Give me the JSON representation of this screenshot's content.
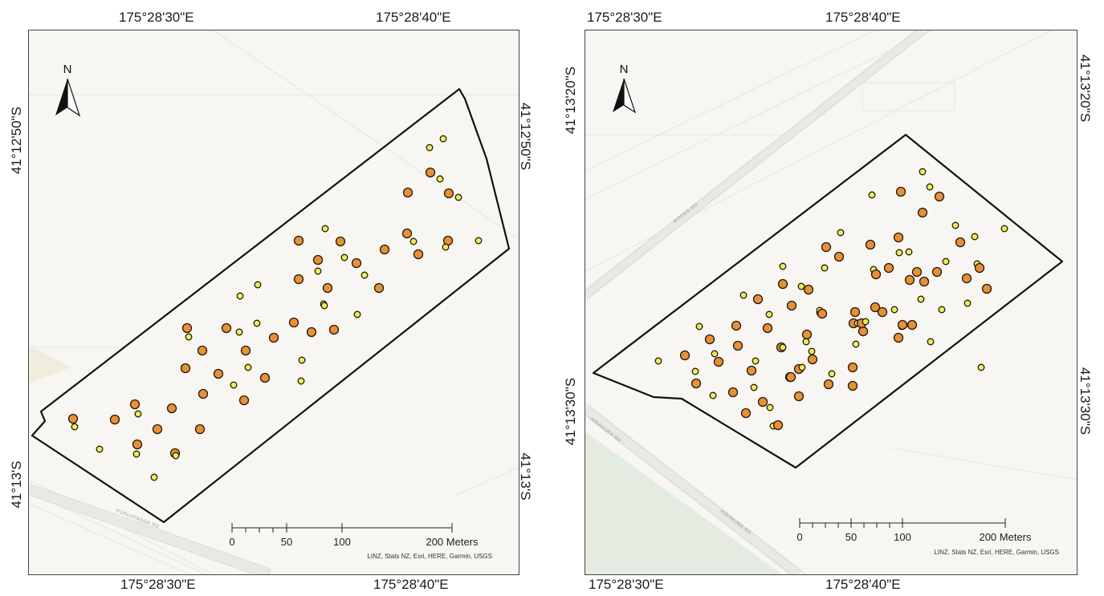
{
  "left_map": {
    "top_coords": [
      "175°28'30\"E",
      "175°28'40\"E"
    ],
    "bottom_coords": [
      "175°28'30\"E",
      "175°28'40\"E"
    ],
    "left_coords": [
      "41°12'50\"S",
      "41°13'S"
    ],
    "right_coords": [
      "41°12'50\"S",
      "41°13'S"
    ],
    "north_label": "N",
    "scale": {
      "ticks": [
        "0",
        "50",
        "100"
      ],
      "end_label": "200 Meters"
    },
    "attribution": "LINZ, Stats NZ, Esri, HERE, Garmin, USGS",
    "road_label": "PURUATANGA RD",
    "legend_colors": {
      "large": "#f08e2a",
      "small": "#f3ef3d",
      "outline": "#1a1a1a"
    }
  },
  "right_map": {
    "top_coords": [
      "175°28'30\"E",
      "175°28'40\"E"
    ],
    "bottom_coords": [
      "175°28'30\"E",
      "175°28'40\"E"
    ],
    "left_coords": [
      "41°13'20\"S",
      "41°13'30\"S"
    ],
    "right_coords": [
      "41°13'20\"S",
      "41°13'30\"S"
    ],
    "north_label": "N",
    "scale": {
      "ticks": [
        "0",
        "50",
        "100"
      ],
      "end_label": "200 Meters"
    },
    "attribution": "LINZ, Stats NZ, Esri, HERE, Garmin, USGS",
    "road_labels": [
      "ROODS RD",
      "HINAKURA RD",
      "HINAKURA RD"
    ],
    "legend_colors": {
      "large": "#f08e2a",
      "small": "#f3ef3d",
      "outline": "#1a1a1a"
    }
  }
}
